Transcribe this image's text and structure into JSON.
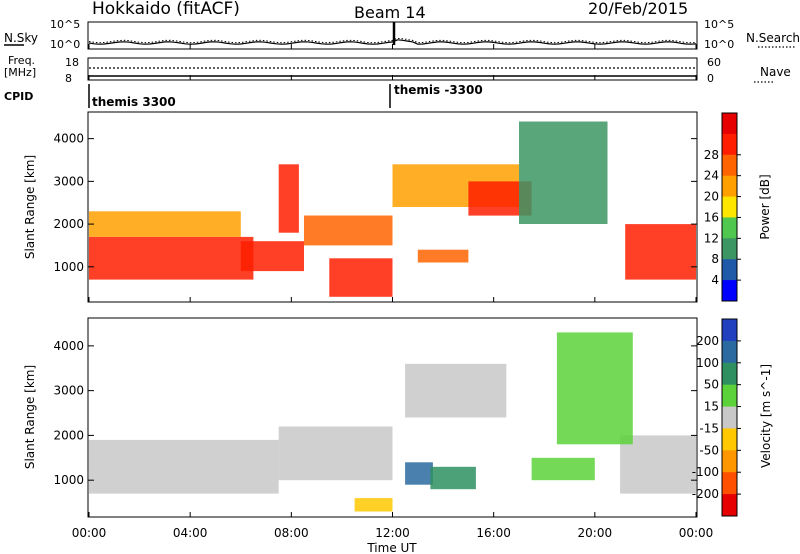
{
  "header": {
    "station": "Hokkaido (fitACF)",
    "beam": "Beam 14",
    "date": "20/Feb/2015"
  },
  "noise_panel": {
    "left_label": "N.Sky",
    "right_label": "N.Search",
    "tick_top": "10^5",
    "tick_bottom": "10^0"
  },
  "freq_panel": {
    "left_label_1": "Freq.",
    "left_label_2": "[MHz]",
    "left_tick_top": "18",
    "left_tick_bottom": "8",
    "right_label": "Nave",
    "right_tick_top": "60",
    "right_tick_bottom": "0"
  },
  "cpid_panel": {
    "label": "CPID",
    "segments": [
      "themis 3300",
      "themis -3300"
    ]
  },
  "x_axis": {
    "title": "Time UT",
    "ticks": [
      "00:00",
      "04:00",
      "08:00",
      "12:00",
      "16:00",
      "20:00",
      "00:00"
    ]
  },
  "y_axis": {
    "title": "Slant Range [km]",
    "ticks": [
      "1000",
      "2000",
      "3000",
      "4000"
    ]
  },
  "power_colorbar": {
    "title": "Power [dB]",
    "ticks": [
      "4",
      "8",
      "12",
      "16",
      "20",
      "24",
      "28"
    ],
    "colors": [
      "#0000ff",
      "#1e5aa8",
      "#3c9664",
      "#50c850",
      "#ffe600",
      "#ffa000",
      "#ff6400",
      "#ff1e00",
      "#e60000"
    ]
  },
  "velocity_colorbar": {
    "title": "Velocity [m s^-1]",
    "ticks": [
      "200",
      "100",
      "50",
      "15",
      "-15",
      "-50",
      "-100",
      "-200"
    ],
    "colors": [
      "#2040c0",
      "#2a6aa0",
      "#2e9060",
      "#5cd23a",
      "#c8c8c8",
      "#ffc800",
      "#ff9600",
      "#ff5000",
      "#e60000"
    ]
  },
  "chart_data": {
    "type": "heatmap",
    "title": "Hokkaido (fitACF) Beam 14 20/Feb/2015",
    "xlabel": "Time UT",
    "ylabel": "Slant Range [km]",
    "xlim": [
      0,
      24
    ],
    "ylim": [
      200,
      4600
    ],
    "panels": [
      {
        "name": "Power",
        "colorbar_title": "Power [dB]",
        "colorbar_range": [
          0,
          32
        ],
        "regions": [
          {
            "t": [
              0,
              6.5
            ],
            "range": [
              700,
              1700
            ],
            "value": 28
          },
          {
            "t": [
              0,
              6
            ],
            "range": [
              1700,
              2300
            ],
            "value": 18
          },
          {
            "t": [
              6,
              8.5
            ],
            "range": [
              900,
              1600
            ],
            "value": 26
          },
          {
            "t": [
              7.5,
              8.3
            ],
            "range": [
              1800,
              3400
            ],
            "value": 26
          },
          {
            "t": [
              8.5,
              12
            ],
            "range": [
              1500,
              2200
            ],
            "value": 24
          },
          {
            "t": [
              9.5,
              12
            ],
            "range": [
              300,
              1200
            ],
            "value": 27
          },
          {
            "t": [
              12,
              17
            ],
            "range": [
              2400,
              3400
            ],
            "value": 18
          },
          {
            "t": [
              15,
              17.5
            ],
            "range": [
              2200,
              3000
            ],
            "value": 26
          },
          {
            "t": [
              13,
              15
            ],
            "range": [
              1100,
              1400
            ],
            "value": 24
          },
          {
            "t": [
              21.2,
              24
            ],
            "range": [
              700,
              2000
            ],
            "value": 28
          },
          {
            "t": [
              17,
              20.5
            ],
            "range": [
              2000,
              4400
            ],
            "value": 8
          }
        ]
      },
      {
        "name": "Velocity",
        "colorbar_title": "Velocity [m s^-1]",
        "colorbar_range": [
          -250,
          250
        ],
        "regions": [
          {
            "t": [
              0,
              7.5
            ],
            "range": [
              700,
              1900
            ],
            "value": 0
          },
          {
            "t": [
              7.5,
              12
            ],
            "range": [
              1000,
              2200
            ],
            "value": 0
          },
          {
            "t": [
              12.5,
              16.5
            ],
            "range": [
              2400,
              3600
            ],
            "value": 0
          },
          {
            "t": [
              21,
              24
            ],
            "range": [
              700,
              2000
            ],
            "value": 0
          },
          {
            "t": [
              12.5,
              13.6
            ],
            "range": [
              900,
              1400
            ],
            "value": 180
          },
          {
            "t": [
              13.5,
              15.3
            ],
            "range": [
              800,
              1300
            ],
            "value": 90
          },
          {
            "t": [
              17.5,
              20
            ],
            "range": [
              1000,
              1500
            ],
            "value": 40
          },
          {
            "t": [
              18.5,
              21.5
            ],
            "range": [
              1800,
              4300
            ],
            "value": 40
          },
          {
            "t": [
              10.5,
              12
            ],
            "range": [
              300,
              600
            ],
            "value": -40
          }
        ]
      }
    ]
  }
}
